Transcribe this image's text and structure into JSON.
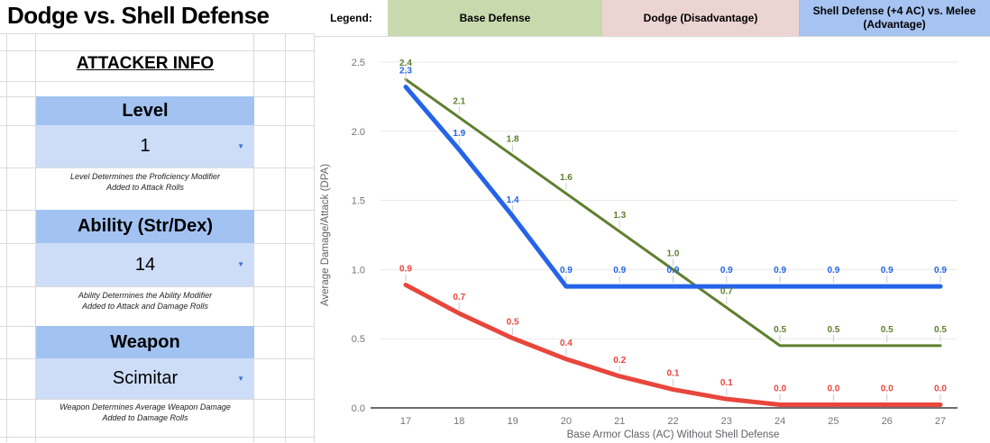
{
  "title": "Dodge vs. Shell Defense",
  "colors": {
    "header_cell": "#a2c3f2",
    "value_cell": "#cdddf8",
    "dropdown_arrow": "#3d6fd0"
  },
  "attacker": {
    "heading": "ATTACKER INFO",
    "fields": [
      {
        "label": "Level",
        "value": "1",
        "caption": [
          "Level Determines the Proficiency Modifier",
          "Added to Attack Rolls"
        ]
      },
      {
        "label": "Ability (Str/Dex)",
        "value": "14",
        "caption": [
          "Ability Determines the Ability Modifier",
          "Added to Attack and Damage Rolls"
        ]
      },
      {
        "label": "Weapon",
        "value": "Scimitar",
        "caption": [
          "Weapon Determines Average Weapon Damage",
          "Added to Damage Rolls"
        ]
      }
    ]
  },
  "legend": {
    "label": "Legend:",
    "items": [
      {
        "text": "Base Defense",
        "bg": "#c9d9ae"
      },
      {
        "text": "Dodge (Disadvantage)",
        "bg": "#ecd4d2"
      },
      {
        "text": "Shell Defense (+4 AC) vs. Melee (Advantage)",
        "bg": "#a6c3f1"
      }
    ]
  },
  "chart_data": {
    "type": "line",
    "x": [
      17,
      18,
      19,
      20,
      21,
      22,
      23,
      24,
      25,
      26,
      27
    ],
    "xlabel": "Base Armor Class (AC) Without Shell Defense",
    "ylabel": "Average Damage/Attack (DPA)",
    "ylim": [
      0,
      2.5
    ],
    "yticks": [
      0.0,
      0.5,
      1.0,
      1.5,
      2.0,
      2.5
    ],
    "grid": true,
    "legend_position": "top-external-cells",
    "series": [
      {
        "name": "Base Defense",
        "color": "#5f7f2e",
        "line_width": 3,
        "values": [
          2.375,
          2.1,
          1.825,
          1.55,
          1.275,
          1.0,
          0.725,
          0.45,
          0.45,
          0.45,
          0.45
        ],
        "labels": [
          "2.4",
          "2.1",
          "1.8",
          "1.6",
          "1.3",
          "1.0",
          "0.7",
          "0.5",
          "0.5",
          "0.5",
          "0.5"
        ]
      },
      {
        "name": "Dodge (Disadvantage)",
        "color": "#e8463c",
        "line_width": 5,
        "values": [
          0.889,
          0.683,
          0.504,
          0.353,
          0.229,
          0.133,
          0.064,
          0.023,
          0.023,
          0.023,
          0.023
        ],
        "labels": [
          "0.9",
          "0.7",
          "0.5",
          "0.4",
          "0.2",
          "0.1",
          "0.1",
          "0.0",
          "0.0",
          "0.0",
          "0.0"
        ]
      },
      {
        "name": "Shell Defense (+4 AC) vs. Melee (Advantage)",
        "color": "#2563e8",
        "line_width": 5,
        "values": [
          2.321,
          1.867,
          1.386,
          0.878,
          0.878,
          0.878,
          0.878,
          0.878,
          0.878,
          0.878,
          0.878
        ],
        "labels": [
          "2.3",
          "1.9",
          "1.4",
          "0.9",
          "0.9",
          "0.9",
          "0.9",
          "0.9",
          "0.9",
          "0.9",
          "0.9"
        ]
      }
    ]
  }
}
